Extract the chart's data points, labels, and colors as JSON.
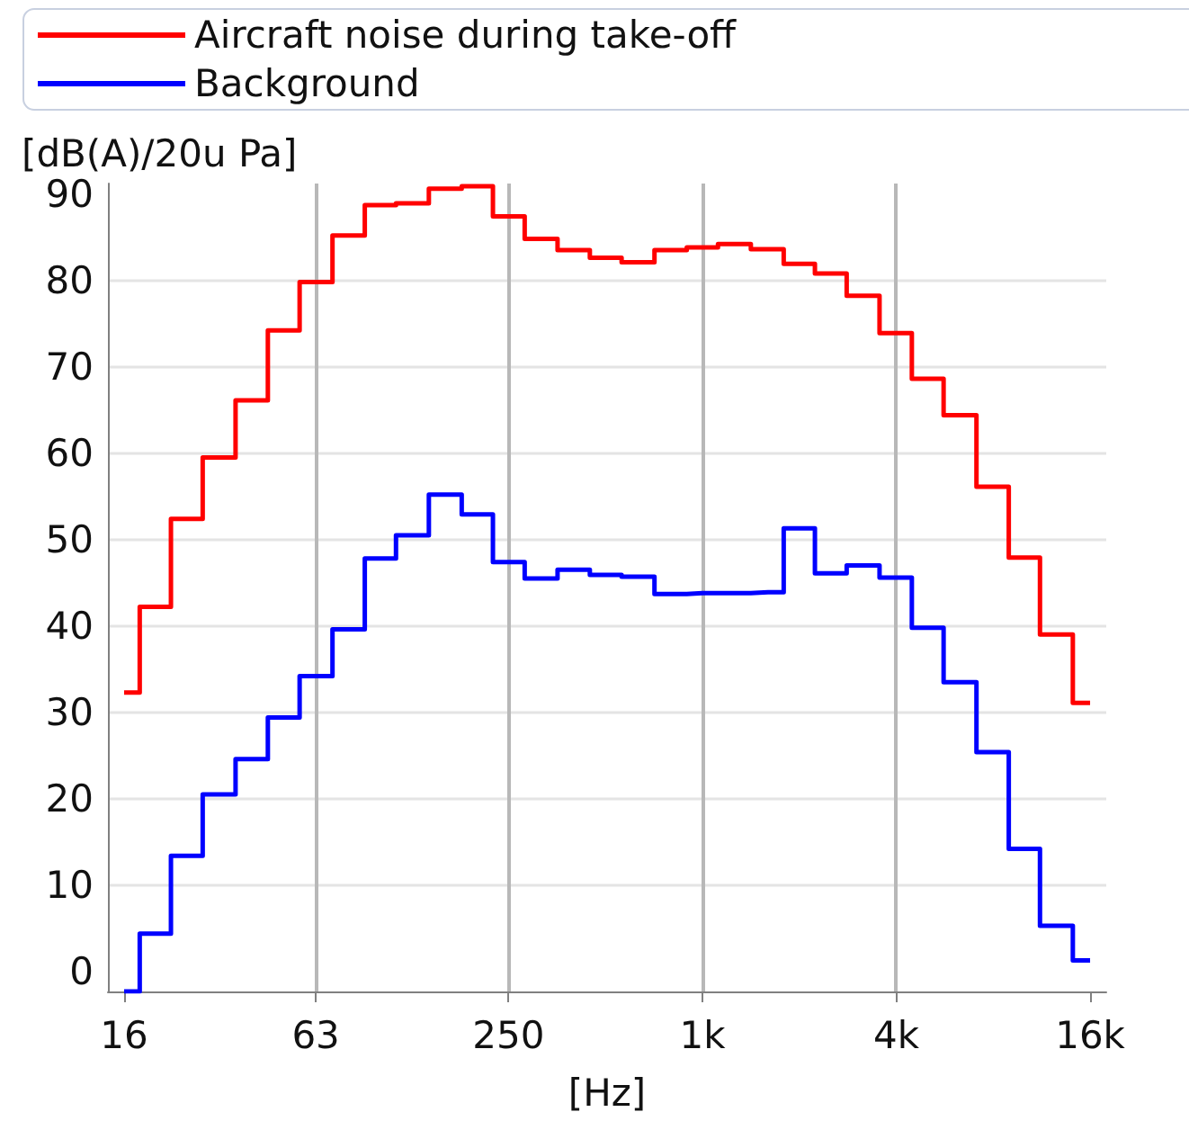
{
  "chart_data": {
    "type": "step",
    "xlabel": "[Hz]",
    "ylabel": "[dB(A)/20u Pa]",
    "x": [
      16,
      20,
      25,
      31.5,
      40,
      50,
      63,
      80,
      100,
      125,
      160,
      200,
      250,
      315,
      400,
      500,
      630,
      800,
      1000,
      1250,
      1600,
      2000,
      2500,
      3150,
      4000,
      5000,
      6300,
      8000,
      10000,
      12500,
      16000
    ],
    "series": [
      {
        "name": "Aircraft noise during take-off",
        "color": "#ff0000",
        "values": [
          32.3,
          42.2,
          52.4,
          59.5,
          66.1,
          74.2,
          79.8,
          85.2,
          88.7,
          88.9,
          90.6,
          90.9,
          87.4,
          84.8,
          83.5,
          82.6,
          82.1,
          83.5,
          83.8,
          84.2,
          83.6,
          81.9,
          80.8,
          78.2,
          73.9,
          68.6,
          64.4,
          56.1,
          47.9,
          39.0,
          31.1
        ]
      },
      {
        "name": "Background",
        "color": "#0000ff",
        "values": [
          -2.3,
          4.4,
          13.4,
          20.5,
          24.6,
          29.4,
          34.2,
          39.6,
          47.8,
          50.5,
          55.2,
          52.9,
          47.4,
          45.5,
          46.5,
          45.9,
          45.7,
          43.7,
          43.8,
          43.8,
          43.9,
          51.3,
          46.1,
          47.0,
          45.6,
          39.8,
          33.5,
          25.4,
          14.2,
          5.3,
          1.3
        ]
      }
    ],
    "log": "x",
    "xlim": [
      14.25,
      17960
    ],
    "xticks": [
      16,
      63,
      250,
      {
        "value": 1000,
        "label": "1k"
      },
      {
        "value": 4000,
        "label": "4k"
      },
      {
        "value": 16000,
        "label": "16k"
      }
    ],
    "ylim": [
      -2.3,
      91.2
    ],
    "yticks": [
      0,
      10,
      20,
      30,
      40,
      50,
      60,
      70,
      80,
      90
    ],
    "grid": true,
    "legend": "top",
    "marker": "none"
  }
}
